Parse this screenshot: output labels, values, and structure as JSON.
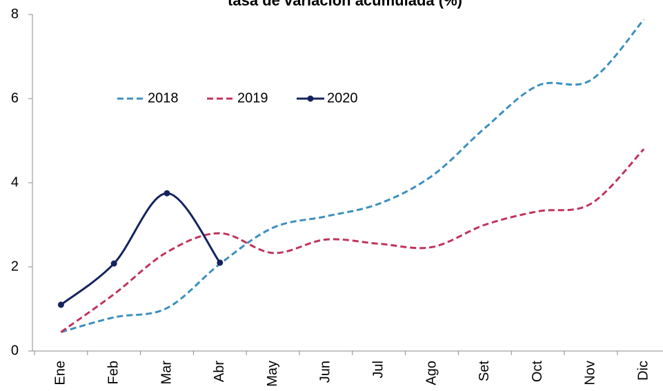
{
  "chart_data": {
    "type": "line",
    "title": "tasa de variación acumulada (%)",
    "categories": [
      "Ene",
      "Feb",
      "Mar",
      "Abr",
      "May",
      "Jun",
      "Jul",
      "Ago",
      "Set",
      "Oct",
      "Nov",
      "Dic"
    ],
    "series": [
      {
        "name": "2018",
        "color": "#3b8fbf",
        "dashed": true,
        "markers": false,
        "values": [
          0.45,
          0.8,
          1.02,
          2.07,
          2.93,
          3.2,
          3.5,
          4.16,
          5.3,
          6.31,
          6.44,
          7.88
        ]
      },
      {
        "name": "2019",
        "color": "#c0335a",
        "dashed": true,
        "markers": false,
        "values": [
          0.45,
          1.35,
          2.35,
          2.8,
          2.33,
          2.65,
          2.55,
          2.47,
          3.0,
          3.32,
          3.5,
          4.8
        ]
      },
      {
        "name": "2020",
        "color": "#14235e",
        "dashed": false,
        "markers": true,
        "values": [
          1.1,
          2.08,
          3.75,
          2.1,
          null,
          null,
          null,
          null,
          null,
          null,
          null,
          null
        ]
      }
    ],
    "ylim": [
      0,
      8
    ],
    "yticks": [
      0,
      2,
      4,
      6,
      8
    ],
    "smooth": true,
    "legend": "upper left"
  }
}
